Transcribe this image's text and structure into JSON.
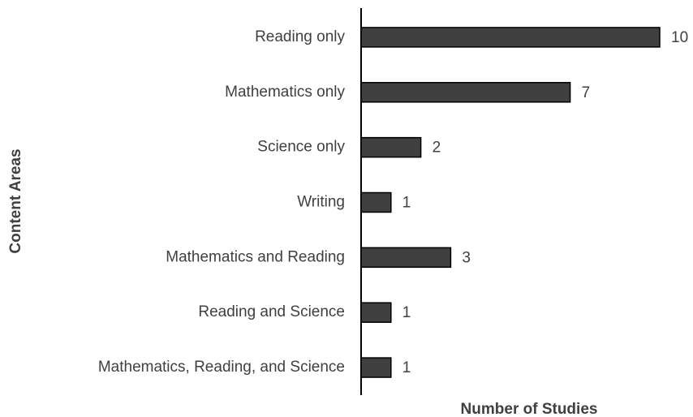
{
  "chart_data": {
    "type": "barh",
    "categories": [
      "Reading only",
      "Mathematics only",
      "Science only",
      "Writing",
      "Mathematics and Reading",
      "Reading and Science",
      "Mathematics, Reading, and Science"
    ],
    "values": [
      10,
      7,
      2,
      1,
      3,
      1,
      1
    ],
    "color": "#404040",
    "x_label": "Number of Studies",
    "y_label": "Content Areas"
  }
}
